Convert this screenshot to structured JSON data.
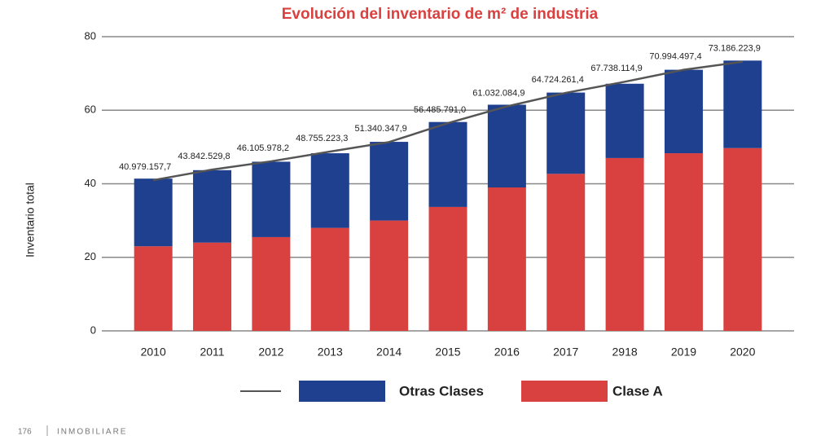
{
  "chart_data": {
    "type": "stacked_bar_line",
    "title": "Evolución del inventario de m² de industria",
    "y_label": "Inventario total",
    "categories": [
      "2010",
      "2011",
      "2012",
      "2013",
      "2014",
      "2015",
      "2016",
      "2017",
      "2918",
      "2019",
      "2020"
    ],
    "series": [
      {
        "name": "Clase A",
        "color": "#d94141",
        "values": [
          23,
          24,
          25.5,
          28,
          30,
          33.7,
          39,
          42.7,
          47,
          48.3,
          49.7
        ]
      },
      {
        "name": "Otras Clases",
        "color": "#1f3f8f",
        "values": [
          18.4,
          19.7,
          20.5,
          20.3,
          21.4,
          23.1,
          22.5,
          22.1,
          20.2,
          22.7,
          23.8
        ]
      }
    ],
    "line": {
      "color": "#555555",
      "values": [
        40.9791577,
        43.8425298,
        46.1059782,
        48.7552233,
        51.3403479,
        56.485791,
        61.0320849,
        64.7242614,
        67.7381149,
        70.9944974,
        73.1862239
      ],
      "value_labels": [
        "40.979.157,7",
        "43.842.529,8",
        "46.105.978,2",
        "48.755.223,3",
        "51.340.347,9",
        "56.485.791,0",
        "61.032.084,9",
        "64.724.261,4",
        "67.738.114,9",
        "70.994.497,4",
        "73.186.223,9"
      ]
    },
    "ylim": [
      0,
      80
    ],
    "yticks": [
      0,
      20,
      40,
      60,
      80
    ],
    "grid": true,
    "legend_order": [
      1,
      0
    ]
  },
  "footer": {
    "page": "176",
    "brand": "INMOBILIARE"
  }
}
